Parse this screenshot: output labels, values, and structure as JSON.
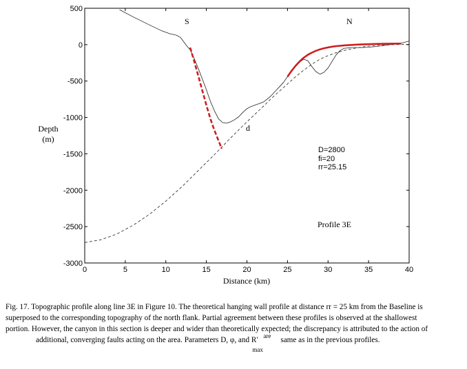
{
  "chart_data": {
    "type": "line",
    "title": "",
    "xlabel": "Distance (km)",
    "ylabel": "Depth (m)",
    "ylabel_lines": [
      "Depth",
      "(m)"
    ],
    "xlim": [
      0,
      40
    ],
    "ylim": [
      -3000,
      500
    ],
    "x_ticks": [
      0,
      5,
      10,
      15,
      20,
      25,
      30,
      35,
      40
    ],
    "y_ticks": [
      500,
      0,
      -500,
      -1000,
      -1500,
      -2000,
      -2500,
      -3000
    ],
    "grid": false,
    "series": [
      {
        "style": "solid-thin-black",
        "points": [
          [
            4.3,
            480
          ],
          [
            6,
            380
          ],
          [
            8,
            270
          ],
          [
            9.5,
            190
          ],
          [
            10.5,
            150
          ],
          [
            11.3,
            130
          ],
          [
            11.8,
            100
          ],
          [
            12.2,
            40
          ],
          [
            12.6,
            -20
          ],
          [
            13,
            -70
          ],
          [
            13.5,
            -190
          ],
          [
            14,
            -330
          ],
          [
            14.5,
            -470
          ],
          [
            15,
            -620
          ],
          [
            15.5,
            -780
          ],
          [
            16,
            -910
          ],
          [
            16.5,
            -1020
          ],
          [
            17,
            -1070
          ],
          [
            17.5,
            -1080
          ],
          [
            18,
            -1060
          ],
          [
            18.5,
            -1030
          ],
          [
            19,
            -990
          ],
          [
            19.5,
            -930
          ],
          [
            20,
            -880
          ],
          [
            20.5,
            -850
          ],
          [
            21,
            -830
          ],
          [
            21.5,
            -810
          ],
          [
            22,
            -790
          ],
          [
            22.5,
            -750
          ],
          [
            23,
            -700
          ],
          [
            23.5,
            -640
          ],
          [
            24,
            -580
          ],
          [
            24.5,
            -520
          ],
          [
            25,
            -440
          ],
          [
            25.5,
            -370
          ],
          [
            26,
            -300
          ],
          [
            26.5,
            -240
          ],
          [
            27,
            -200
          ],
          [
            27.5,
            -220
          ],
          [
            28,
            -300
          ],
          [
            28.5,
            -370
          ],
          [
            29,
            -405
          ],
          [
            29.5,
            -380
          ],
          [
            30,
            -320
          ],
          [
            30.5,
            -230
          ],
          [
            31,
            -140
          ],
          [
            31.5,
            -80
          ],
          [
            32,
            -50
          ],
          [
            33,
            -40
          ],
          [
            34,
            -40
          ],
          [
            35,
            -35
          ],
          [
            36,
            -25
          ],
          [
            37,
            -10
          ],
          [
            38,
            5
          ],
          [
            38.5,
            15
          ],
          [
            39,
            20
          ],
          [
            40,
            50
          ]
        ]
      },
      {
        "style": "dashed-thin-black",
        "points": [
          [
            0,
            -2720
          ],
          [
            2,
            -2680
          ],
          [
            4,
            -2600
          ],
          [
            6,
            -2480
          ],
          [
            8,
            -2330
          ],
          [
            10,
            -2150
          ],
          [
            12,
            -1950
          ],
          [
            14,
            -1730
          ],
          [
            16,
            -1510
          ],
          [
            18,
            -1280
          ],
          [
            20,
            -1060
          ],
          [
            22,
            -850
          ],
          [
            23,
            -740
          ],
          [
            24,
            -640
          ],
          [
            25,
            -540
          ],
          [
            26,
            -440
          ],
          [
            27,
            -350
          ],
          [
            28,
            -270
          ],
          [
            29,
            -200
          ],
          [
            30,
            -150
          ],
          [
            31,
            -110
          ],
          [
            32,
            -80
          ],
          [
            33,
            -55
          ],
          [
            34,
            -35
          ],
          [
            35,
            -20
          ],
          [
            36,
            -10
          ],
          [
            37,
            -3
          ],
          [
            38,
            0
          ],
          [
            39,
            2
          ],
          [
            40,
            3
          ]
        ]
      },
      {
        "style": "dashed-thick-red",
        "points": [
          [
            13,
            -40
          ],
          [
            13.5,
            -230
          ],
          [
            14,
            -430
          ],
          [
            14.5,
            -630
          ],
          [
            15,
            -830
          ],
          [
            15.5,
            -1020
          ],
          [
            16,
            -1180
          ],
          [
            16.5,
            -1320
          ],
          [
            16.9,
            -1430
          ]
        ]
      },
      {
        "style": "solid-thick-red",
        "points": [
          [
            25,
            -440
          ],
          [
            25.5,
            -360
          ],
          [
            26,
            -290
          ],
          [
            26.5,
            -230
          ],
          [
            27,
            -180
          ],
          [
            27.5,
            -140
          ],
          [
            28,
            -110
          ],
          [
            28.5,
            -85
          ],
          [
            29,
            -65
          ],
          [
            29.5,
            -50
          ],
          [
            30,
            -38
          ],
          [
            30.5,
            -28
          ],
          [
            31,
            -20
          ],
          [
            32,
            -10
          ],
          [
            33,
            -3
          ],
          [
            34,
            2
          ],
          [
            35,
            6
          ],
          [
            36,
            10
          ],
          [
            37,
            12
          ],
          [
            38,
            14
          ],
          [
            39,
            15
          ]
        ]
      }
    ],
    "annotations": {
      "s": "S",
      "n": "N",
      "d": "d",
      "params": [
        "D=2800",
        "fi=20",
        "rr=25.15"
      ],
      "profile": "Profile 3E"
    }
  },
  "caption": {
    "line1": "Fig. 17. Topographic profile along line 3E in Figure 10. The theoretical hanging wall profile at distance rr = 25 km from the Baseline is",
    "line2": "superposed to the corresponding topography of the north flank. Partial agreement between these profiles is observed at the shallowest",
    "line3": "portion. However, the canyon in this section is deeper and wider than theoretically expected; the discrepancy is attributed to the action of",
    "line4": "additional, converging faults acting on the area. Parameters D, φ, and R'",
    "sup": "are",
    "tail": "same as in the previous profiles.",
    "sub": "max"
  }
}
